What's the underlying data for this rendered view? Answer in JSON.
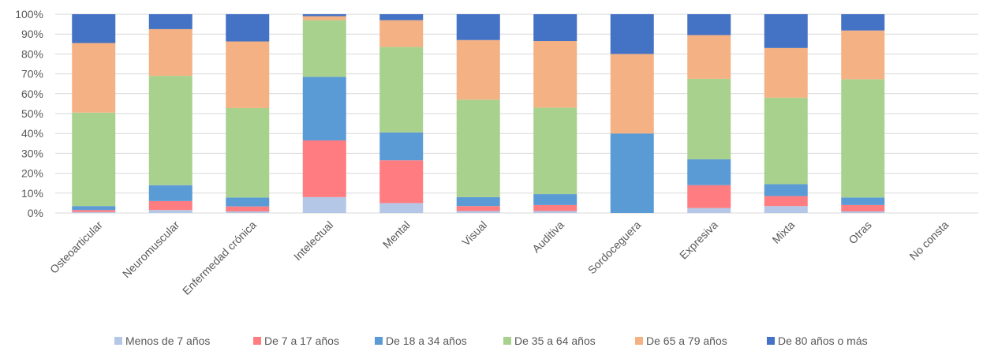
{
  "chart_data": {
    "type": "bar",
    "stacked": true,
    "normalized": true,
    "categories": [
      "Osteoarticular",
      "Neuromuscular",
      "Enfermedad crónica",
      "Intelectual",
      "Mental",
      "Visual",
      "Auditiva",
      "Sordoceguera",
      "Expresiva",
      "Mixta",
      "Otras",
      "No consta"
    ],
    "yticks": [
      "0%",
      "10%",
      "20%",
      "30%",
      "40%",
      "50%",
      "60%",
      "70%",
      "80%",
      "90%",
      "100%"
    ],
    "ylim": [
      0,
      100
    ],
    "grid": true,
    "legend_position": "bottom",
    "series": [
      {
        "name": "Menos de 7 años",
        "color": "#B4C7E7",
        "values": [
          0.5,
          1.5,
          0.8,
          8,
          5,
          1,
          1,
          0,
          2.5,
          3.5,
          0.8,
          0
        ]
      },
      {
        "name": "De 7 a 17 años",
        "color": "#FF7C80",
        "values": [
          1,
          4.5,
          2.5,
          28.5,
          21.5,
          2.5,
          3,
          0,
          11.5,
          5,
          3.2,
          0
        ]
      },
      {
        "name": "De 18 a 34 años",
        "color": "#5B9BD5",
        "values": [
          2,
          8,
          4.5,
          32,
          14,
          4.5,
          5.5,
          40,
          13,
          6,
          3.8,
          0
        ]
      },
      {
        "name": "De 35 a 64 años",
        "color": "#A9D18E",
        "values": [
          47,
          55,
          45,
          28.5,
          43,
          49,
          43.5,
          0,
          40.5,
          43.5,
          59.5,
          0
        ]
      },
      {
        "name": "De 65 a 79 años",
        "color": "#F4B183",
        "values": [
          35,
          23.5,
          33.5,
          2,
          13.5,
          30,
          33.5,
          40,
          22,
          25,
          24.5,
          0
        ]
      },
      {
        "name": "De 80 años o más",
        "color": "#4472C4",
        "values": [
          14.5,
          7.5,
          13.7,
          1,
          3,
          13,
          13.5,
          20,
          10.5,
          17,
          8.2,
          0
        ]
      }
    ]
  }
}
